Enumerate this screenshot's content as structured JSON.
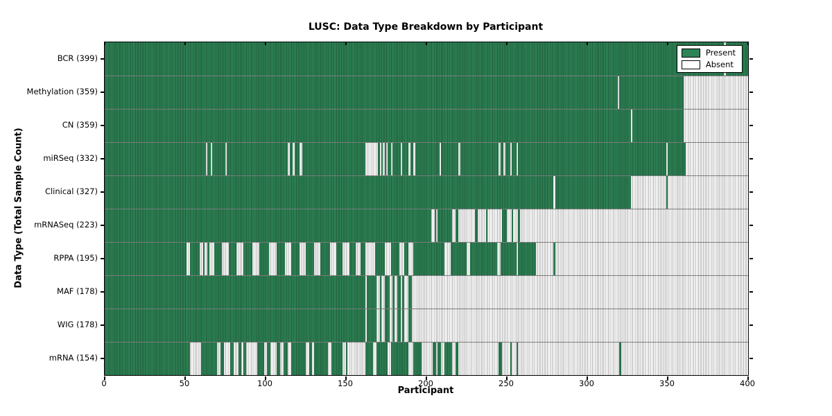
{
  "chart_data": {
    "type": "heatmap",
    "title": "LUSC: Data Type Breakdown by Participant",
    "xlabel": "Participant",
    "ylabel": "Data Type (Total Sample Count)",
    "xlim": [
      0,
      400
    ],
    "x_ticks": [
      0,
      50,
      100,
      150,
      200,
      250,
      300,
      350,
      400
    ],
    "grid": false,
    "legend": {
      "position": "upper-right",
      "entries": [
        {
          "label": "Present",
          "color": "#2e8456"
        },
        {
          "label": "Absent",
          "color": "#ffffff"
        }
      ]
    },
    "colors": {
      "present": "#2e8456",
      "absent": "#ffffff",
      "cell_edge": "rgba(0,0,0,0.30)"
    },
    "rows": [
      {
        "label": "BCR (399)",
        "name": "BCR",
        "total": 399,
        "runs": [
          [
            0,
            385,
            "P"
          ],
          [
            385,
            386,
            "A"
          ],
          [
            386,
            400,
            "P"
          ]
        ]
      },
      {
        "label": "Methylation (359)",
        "name": "Methylation",
        "total": 359,
        "runs": [
          [
            0,
            319,
            "P"
          ],
          [
            319,
            320,
            "A"
          ],
          [
            320,
            360,
            "P"
          ],
          [
            360,
            400,
            "A"
          ]
        ]
      },
      {
        "label": "CN (359)",
        "name": "CN",
        "total": 359,
        "runs": [
          [
            0,
            327,
            "P"
          ],
          [
            327,
            328,
            "A"
          ],
          [
            328,
            360,
            "P"
          ],
          [
            360,
            400,
            "A"
          ]
        ]
      },
      {
        "label": "miRSeq (332)",
        "name": "miRSeq",
        "total": 332,
        "runs": [
          [
            0,
            63,
            "P"
          ],
          [
            63,
            64,
            "A"
          ],
          [
            64,
            66,
            "P"
          ],
          [
            66,
            67,
            "A"
          ],
          [
            67,
            75,
            "P"
          ],
          [
            75,
            76,
            "A"
          ],
          [
            76,
            114,
            "P"
          ],
          [
            114,
            115,
            "A"
          ],
          [
            115,
            117,
            "P"
          ],
          [
            117,
            118,
            "A"
          ],
          [
            118,
            121,
            "P"
          ],
          [
            121,
            123,
            "A"
          ],
          [
            123,
            162,
            "P"
          ],
          [
            162,
            170,
            "A"
          ],
          [
            170,
            171,
            "P"
          ],
          [
            171,
            172,
            "A"
          ],
          [
            172,
            173,
            "P"
          ],
          [
            173,
            174,
            "A"
          ],
          [
            174,
            175,
            "P"
          ],
          [
            175,
            176,
            "A"
          ],
          [
            176,
            178,
            "P"
          ],
          [
            178,
            179,
            "A"
          ],
          [
            179,
            184,
            "P"
          ],
          [
            184,
            185,
            "A"
          ],
          [
            185,
            189,
            "P"
          ],
          [
            189,
            190,
            "A"
          ],
          [
            190,
            192,
            "P"
          ],
          [
            192,
            193,
            "A"
          ],
          [
            193,
            208,
            "P"
          ],
          [
            208,
            209,
            "A"
          ],
          [
            209,
            220,
            "P"
          ],
          [
            220,
            221,
            "A"
          ],
          [
            221,
            245,
            "P"
          ],
          [
            245,
            246,
            "A"
          ],
          [
            246,
            248,
            "P"
          ],
          [
            248,
            249,
            "A"
          ],
          [
            249,
            252,
            "P"
          ],
          [
            252,
            253,
            "A"
          ],
          [
            253,
            256,
            "P"
          ],
          [
            256,
            257,
            "A"
          ],
          [
            257,
            349,
            "P"
          ],
          [
            349,
            350,
            "A"
          ],
          [
            350,
            361,
            "P"
          ],
          [
            361,
            400,
            "A"
          ]
        ]
      },
      {
        "label": "Clinical (327)",
        "name": "Clinical",
        "total": 327,
        "runs": [
          [
            0,
            279,
            "P"
          ],
          [
            279,
            280,
            "A"
          ],
          [
            280,
            327,
            "P"
          ],
          [
            327,
            349,
            "A"
          ],
          [
            349,
            350,
            "P"
          ],
          [
            350,
            400,
            "A"
          ]
        ]
      },
      {
        "label": "mRNASeq (223)",
        "name": "mRNASeq",
        "total": 223,
        "runs": [
          [
            0,
            203,
            "P"
          ],
          [
            203,
            205,
            "A"
          ],
          [
            205,
            206,
            "P"
          ],
          [
            206,
            207,
            "A"
          ],
          [
            207,
            216,
            "P"
          ],
          [
            216,
            218,
            "A"
          ],
          [
            218,
            220,
            "P"
          ],
          [
            220,
            230,
            "A"
          ],
          [
            230,
            232,
            "P"
          ],
          [
            232,
            237,
            "A"
          ],
          [
            237,
            238,
            "P"
          ],
          [
            238,
            247,
            "A"
          ],
          [
            247,
            250,
            "P"
          ],
          [
            250,
            253,
            "A"
          ],
          [
            253,
            254,
            "P"
          ],
          [
            254,
            257,
            "A"
          ],
          [
            257,
            258,
            "P"
          ],
          [
            258,
            400,
            "A"
          ]
        ]
      },
      {
        "label": "RPPA (195)",
        "name": "RPPA",
        "total": 195,
        "runs": [
          [
            0,
            51,
            "P"
          ],
          [
            51,
            53,
            "A"
          ],
          [
            53,
            59,
            "P"
          ],
          [
            59,
            61,
            "A"
          ],
          [
            61,
            62,
            "P"
          ],
          [
            62,
            64,
            "A"
          ],
          [
            64,
            65,
            "P"
          ],
          [
            65,
            68,
            "A"
          ],
          [
            68,
            73,
            "P"
          ],
          [
            73,
            77,
            "A"
          ],
          [
            77,
            82,
            "P"
          ],
          [
            82,
            86,
            "A"
          ],
          [
            86,
            92,
            "P"
          ],
          [
            92,
            96,
            "A"
          ],
          [
            96,
            102,
            "P"
          ],
          [
            102,
            107,
            "A"
          ],
          [
            107,
            112,
            "P"
          ],
          [
            112,
            116,
            "A"
          ],
          [
            116,
            121,
            "P"
          ],
          [
            121,
            125,
            "A"
          ],
          [
            125,
            130,
            "P"
          ],
          [
            130,
            134,
            "A"
          ],
          [
            134,
            140,
            "P"
          ],
          [
            140,
            144,
            "A"
          ],
          [
            144,
            148,
            "P"
          ],
          [
            148,
            152,
            "A"
          ],
          [
            152,
            156,
            "P"
          ],
          [
            156,
            159,
            "A"
          ],
          [
            159,
            162,
            "P"
          ],
          [
            162,
            168,
            "A"
          ],
          [
            168,
            174,
            "P"
          ],
          [
            174,
            178,
            "A"
          ],
          [
            178,
            183,
            "P"
          ],
          [
            183,
            186,
            "A"
          ],
          [
            186,
            189,
            "P"
          ],
          [
            189,
            192,
            "A"
          ],
          [
            192,
            211,
            "P"
          ],
          [
            211,
            215,
            "A"
          ],
          [
            215,
            225,
            "P"
          ],
          [
            225,
            227,
            "A"
          ],
          [
            227,
            244,
            "P"
          ],
          [
            244,
            246,
            "A"
          ],
          [
            246,
            256,
            "P"
          ],
          [
            256,
            257,
            "A"
          ],
          [
            257,
            268,
            "P"
          ],
          [
            268,
            279,
            "A"
          ],
          [
            279,
            280,
            "P"
          ],
          [
            280,
            400,
            "A"
          ]
        ]
      },
      {
        "label": "MAF (178)",
        "name": "MAF",
        "total": 178,
        "runs": [
          [
            0,
            162,
            "P"
          ],
          [
            162,
            163,
            "A"
          ],
          [
            163,
            169,
            "P"
          ],
          [
            169,
            171,
            "A"
          ],
          [
            171,
            172,
            "P"
          ],
          [
            172,
            174,
            "A"
          ],
          [
            174,
            177,
            "P"
          ],
          [
            177,
            179,
            "A"
          ],
          [
            179,
            180,
            "P"
          ],
          [
            180,
            182,
            "A"
          ],
          [
            182,
            184,
            "P"
          ],
          [
            184,
            185,
            "A"
          ],
          [
            185,
            186,
            "P"
          ],
          [
            186,
            189,
            "A"
          ],
          [
            189,
            191,
            "P"
          ],
          [
            191,
            400,
            "A"
          ]
        ]
      },
      {
        "label": "WIG (178)",
        "name": "WIG",
        "total": 178,
        "runs": [
          [
            0,
            162,
            "P"
          ],
          [
            162,
            163,
            "A"
          ],
          [
            163,
            169,
            "P"
          ],
          [
            169,
            171,
            "A"
          ],
          [
            171,
            172,
            "P"
          ],
          [
            172,
            174,
            "A"
          ],
          [
            174,
            177,
            "P"
          ],
          [
            177,
            179,
            "A"
          ],
          [
            179,
            180,
            "P"
          ],
          [
            180,
            182,
            "A"
          ],
          [
            182,
            184,
            "P"
          ],
          [
            184,
            185,
            "A"
          ],
          [
            185,
            186,
            "P"
          ],
          [
            186,
            189,
            "A"
          ],
          [
            189,
            191,
            "P"
          ],
          [
            191,
            400,
            "A"
          ]
        ]
      },
      {
        "label": "mRNA (154)",
        "name": "mRNA",
        "total": 154,
        "runs": [
          [
            0,
            53,
            "P"
          ],
          [
            53,
            60,
            "A"
          ],
          [
            60,
            70,
            "P"
          ],
          [
            70,
            72,
            "A"
          ],
          [
            72,
            74,
            "P"
          ],
          [
            74,
            78,
            "A"
          ],
          [
            78,
            80,
            "P"
          ],
          [
            80,
            83,
            "A"
          ],
          [
            83,
            85,
            "P"
          ],
          [
            85,
            86,
            "A"
          ],
          [
            86,
            88,
            "P"
          ],
          [
            88,
            95,
            "A"
          ],
          [
            95,
            99,
            "P"
          ],
          [
            99,
            101,
            "A"
          ],
          [
            101,
            103,
            "P"
          ],
          [
            103,
            107,
            "A"
          ],
          [
            107,
            109,
            "P"
          ],
          [
            109,
            111,
            "A"
          ],
          [
            111,
            114,
            "P"
          ],
          [
            114,
            116,
            "A"
          ],
          [
            116,
            125,
            "P"
          ],
          [
            125,
            127,
            "A"
          ],
          [
            127,
            129,
            "P"
          ],
          [
            129,
            130,
            "A"
          ],
          [
            130,
            139,
            "P"
          ],
          [
            139,
            141,
            "A"
          ],
          [
            141,
            148,
            "P"
          ],
          [
            148,
            150,
            "A"
          ],
          [
            150,
            151,
            "P"
          ],
          [
            151,
            162,
            "A"
          ],
          [
            162,
            167,
            "P"
          ],
          [
            167,
            169,
            "A"
          ],
          [
            169,
            176,
            "P"
          ],
          [
            176,
            178,
            "A"
          ],
          [
            178,
            189,
            "P"
          ],
          [
            189,
            192,
            "A"
          ],
          [
            192,
            197,
            "P"
          ],
          [
            197,
            204,
            "A"
          ],
          [
            204,
            206,
            "P"
          ],
          [
            206,
            207,
            "A"
          ],
          [
            207,
            209,
            "P"
          ],
          [
            209,
            211,
            "A"
          ],
          [
            211,
            216,
            "P"
          ],
          [
            216,
            218,
            "A"
          ],
          [
            218,
            220,
            "P"
          ],
          [
            220,
            245,
            "A"
          ],
          [
            245,
            247,
            "P"
          ],
          [
            247,
            252,
            "A"
          ],
          [
            252,
            253,
            "P"
          ],
          [
            253,
            256,
            "A"
          ],
          [
            256,
            257,
            "P"
          ],
          [
            257,
            320,
            "A"
          ],
          [
            320,
            321,
            "P"
          ],
          [
            321,
            400,
            "A"
          ]
        ]
      }
    ]
  }
}
